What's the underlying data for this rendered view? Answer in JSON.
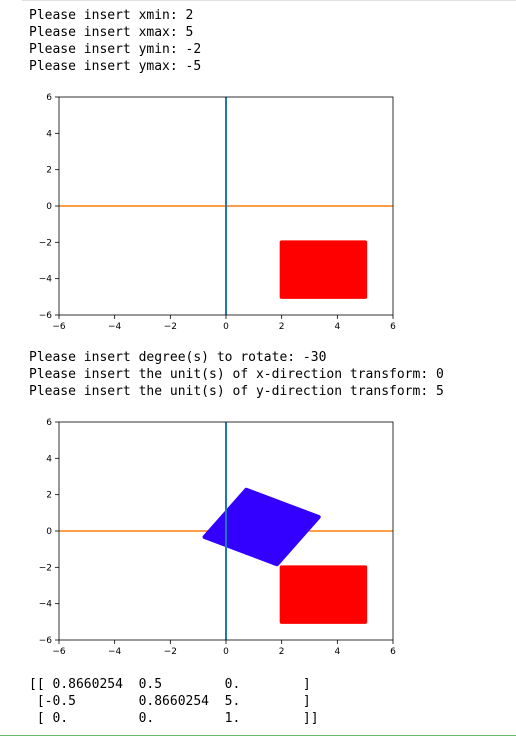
{
  "output": {
    "block1": [
      "Please insert xmin: 2",
      "Please insert xmax: 5",
      "Please insert ymin: -2",
      "Please insert ymax: -5"
    ],
    "block2": [
      "Please insert degree(s) to rotate: -30",
      "Please insert the unit(s) of x-direction transform: 0",
      "Please insert the unit(s) of y-direction transform: 5"
    ],
    "matrix": [
      "[[ 0.8660254  0.5        0.        ]",
      " [-0.5        0.8660254  5.        ]",
      " [ 0.         0.         1.        ]]"
    ]
  },
  "colors": {
    "x_axis_line": "#ff7f0e",
    "y_axis_line": "#1f77b4",
    "original_rect": "#ff0000",
    "transformed_rect": "#3300ff"
  },
  "chart_data": [
    {
      "type": "scatter",
      "xlim": [
        -6,
        6
      ],
      "ylim": [
        -6,
        6
      ],
      "xticks": [
        "−6",
        "−4",
        "−2",
        "0",
        "2",
        "4",
        "6"
      ],
      "yticks": [
        "−6",
        "−4",
        "−2",
        "0",
        "2",
        "4",
        "6"
      ],
      "grid": false,
      "series": [
        {
          "color": "#ff0000",
          "polygon": [
            [
              2,
              -5
            ],
            [
              5,
              -5
            ],
            [
              5,
              -2
            ],
            [
              2,
              -2
            ]
          ]
        }
      ]
    },
    {
      "type": "scatter",
      "xlim": [
        -6,
        6
      ],
      "ylim": [
        -6,
        6
      ],
      "xticks": [
        "−6",
        "−4",
        "−2",
        "0",
        "2",
        "4",
        "6"
      ],
      "yticks": [
        "−6",
        "−4",
        "−2",
        "0",
        "2",
        "4",
        "6"
      ],
      "grid": false,
      "series": [
        {
          "color": "#ff0000",
          "polygon": [
            [
              2,
              -5
            ],
            [
              5,
              -5
            ],
            [
              5,
              -2
            ],
            [
              2,
              -2
            ]
          ]
        },
        {
          "color": "#3300ff",
          "polygon": [
            [
              -0.77,
              -0.33
            ],
            [
              1.83,
              -1.83
            ],
            [
              3.33,
              0.77
            ],
            [
              0.73,
              2.27
            ]
          ]
        }
      ]
    }
  ]
}
